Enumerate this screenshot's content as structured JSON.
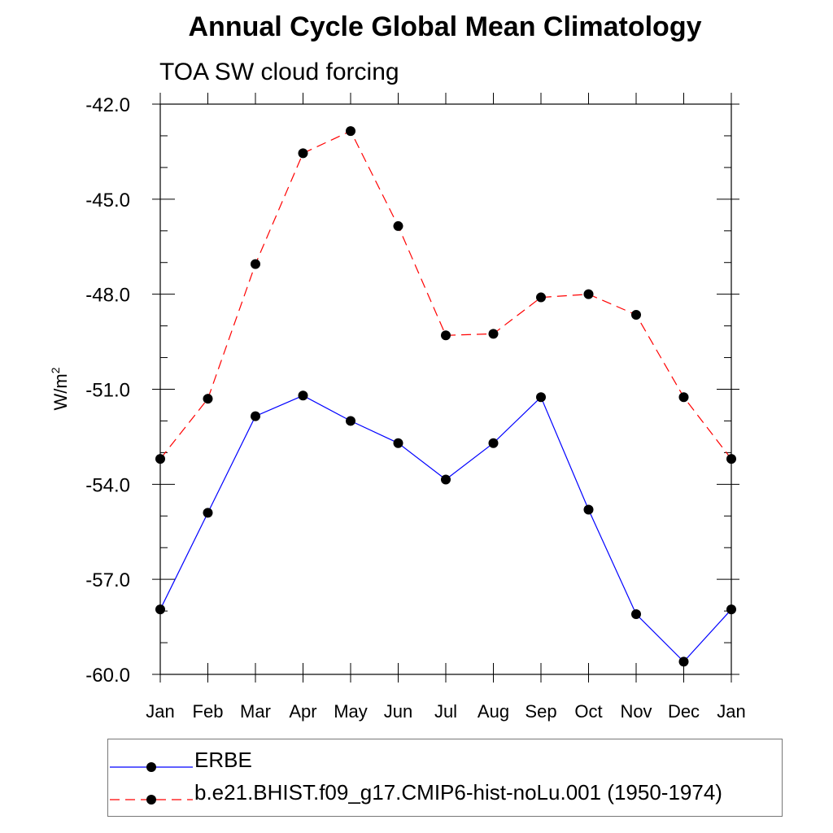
{
  "chart_data": {
    "type": "line",
    "title": "Annual Cycle Global Mean Climatology",
    "subtitle": "TOA SW cloud forcing",
    "xlabel": "",
    "ylabel": "W/m",
    "ylabel_superscript": "2",
    "categories": [
      "Jan",
      "Feb",
      "Mar",
      "Apr",
      "May",
      "Jun",
      "Jul",
      "Aug",
      "Sep",
      "Oct",
      "Nov",
      "Dec",
      "Jan"
    ],
    "ylim": [
      -60.0,
      -42.0
    ],
    "yticks": [
      "-42.0",
      "-45.0",
      "-48.0",
      "-51.0",
      "-54.0",
      "-57.0",
      "-60.0"
    ],
    "grid": false,
    "legend_position": "bottom",
    "series": [
      {
        "name": "ERBE",
        "color": "#0000ff",
        "dash": "solid",
        "values": [
          -57.95,
          -54.9,
          -51.85,
          -51.2,
          -52.0,
          -52.7,
          -53.85,
          -52.7,
          -51.25,
          -54.8,
          -58.1,
          -59.6,
          -57.95
        ]
      },
      {
        "name": "b.e21.BHIST.f09_g17.CMIP6-hist-noLu.001 (1950-1974)",
        "color": "#ff0000",
        "dash": "dashed",
        "values": [
          -53.2,
          -51.3,
          -47.05,
          -43.55,
          -42.85,
          -45.85,
          -49.3,
          -49.25,
          -48.1,
          -48.0,
          -48.65,
          -51.25,
          -53.2
        ]
      }
    ]
  }
}
